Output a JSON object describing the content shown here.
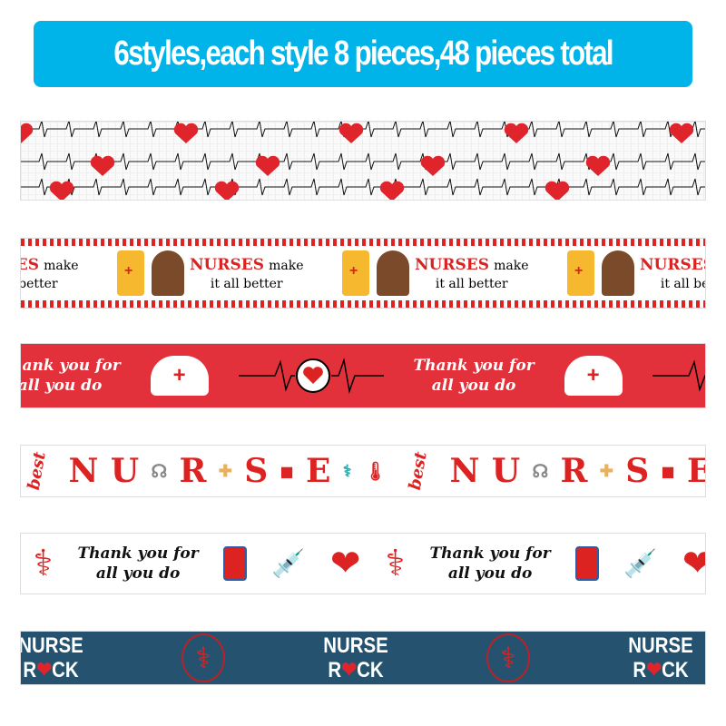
{
  "banner": {
    "text": "6styles,each style 8 pieces,48 pieces total",
    "color": "#00b4ea"
  },
  "ribbons": {
    "r2": {
      "title": "NURSES",
      "title_suffix": "make",
      "line2": "it all better"
    },
    "r3": {
      "line1": "Thank you for",
      "line2": "all you do"
    },
    "r4": {
      "letters": [
        "N",
        "U",
        "R",
        "S",
        "E"
      ],
      "word": "best"
    },
    "r5": {
      "line1": "Thank you for",
      "line2": "all you do"
    },
    "r6": {
      "line1": "NURSE",
      "line2_a": "R",
      "line2_b": "CK"
    }
  }
}
